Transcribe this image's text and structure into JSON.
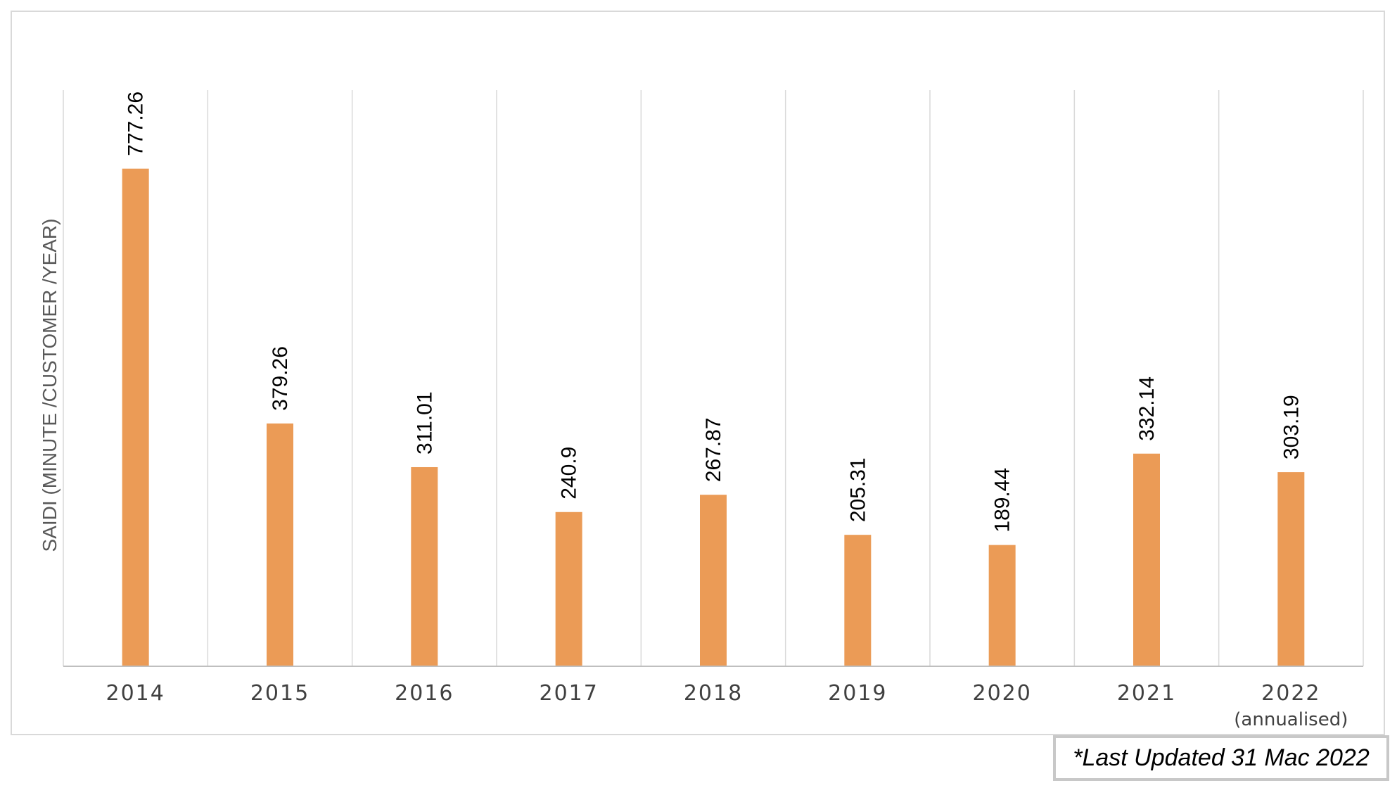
{
  "chart_data": {
    "type": "bar",
    "title": "",
    "xlabel": "",
    "ylabel": "SAIDI (MINUTE /CUSTOMER /YEAR)",
    "categories": [
      "2014",
      "2015",
      "2016",
      "2017",
      "2018",
      "2019",
      "2020",
      "2021",
      "2022"
    ],
    "category_sublabels": [
      "",
      "",
      "",
      "",
      "",
      "",
      "",
      "",
      "(annualised)"
    ],
    "values": [
      777.26,
      379.26,
      311.01,
      240.9,
      267.87,
      205.31,
      189.44,
      332.14,
      303.19
    ],
    "data_labels": [
      "777.26",
      "379.26",
      "311.01",
      "240.9",
      "267.87",
      "205.31",
      "189.44",
      "332.14",
      "303.19"
    ],
    "ylim": [
      0,
      900
    ],
    "grid": "vertical-category-separators",
    "bar_color": "#EB9B56"
  },
  "note": "*Last Updated 31 Mac 2022"
}
